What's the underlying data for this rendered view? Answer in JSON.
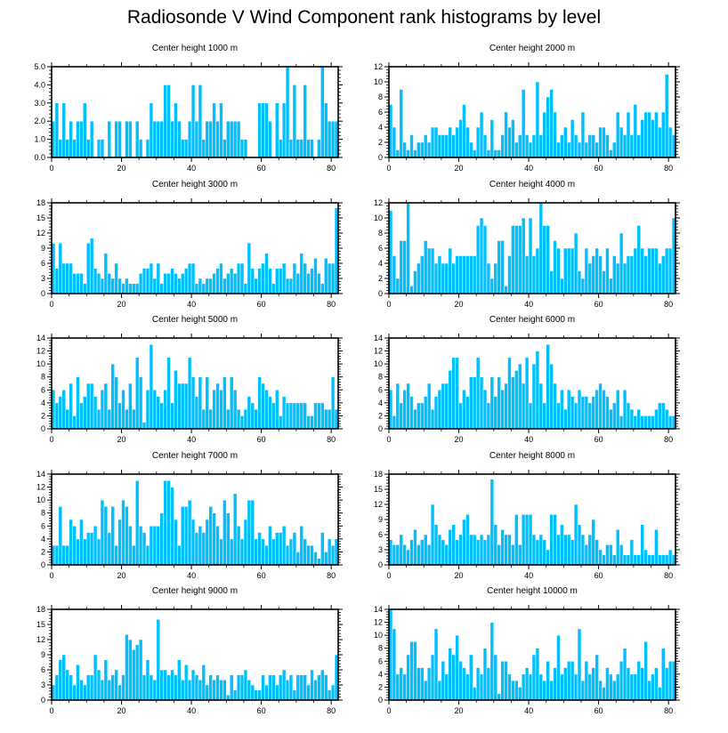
{
  "title": "Radiosonde V Wind Component rank histograms by level",
  "colors": {
    "bar": "#00BFFF",
    "bar_edge": "#ffffff",
    "axis": "#000000"
  },
  "chart_data": [
    {
      "type": "bar",
      "title": "Center height 1000 m",
      "xlabel": "",
      "ylabel": "",
      "xlim": [
        0,
        82
      ],
      "ylim": [
        0,
        5
      ],
      "xticks": [
        0,
        20,
        40,
        60,
        80
      ],
      "xtick_labels": [
        "0",
        "20",
        "40",
        "60",
        "80"
      ],
      "yticks": [
        0,
        1,
        2,
        3,
        4,
        5
      ],
      "ytick_labels": [
        "0.0",
        "1.0",
        "2.0",
        "3.0",
        "4.0",
        "5.0"
      ],
      "values": [
        2,
        3,
        1,
        3,
        1,
        2,
        1,
        2,
        2,
        3,
        1,
        2,
        0,
        1,
        1,
        0,
        2,
        0,
        2,
        2,
        0,
        2,
        2,
        0,
        2,
        1,
        0,
        1,
        3,
        2,
        2,
        2,
        4,
        4,
        2,
        3,
        2,
        1,
        1,
        2,
        4,
        2,
        4,
        1,
        2,
        2,
        3,
        2,
        3,
        1,
        2,
        2,
        2,
        2,
        1,
        1,
        0,
        0,
        0,
        3,
        3,
        3,
        2,
        0,
        3,
        1,
        3,
        5,
        1,
        4,
        1,
        1,
        4,
        1,
        1,
        0,
        1,
        5,
        3,
        2,
        2,
        2
      ]
    },
    {
      "type": "bar",
      "title": "Center height 2000 m",
      "xlabel": "",
      "ylabel": "",
      "xlim": [
        0,
        82
      ],
      "ylim": [
        0,
        12
      ],
      "xticks": [
        0,
        20,
        40,
        60,
        80
      ],
      "xtick_labels": [
        "0",
        "20",
        "40",
        "60",
        "80"
      ],
      "yticks": [
        0,
        2,
        4,
        6,
        8,
        10,
        12
      ],
      "ytick_labels": [
        "0",
        "2",
        "4",
        "6",
        "8",
        "10",
        "12"
      ],
      "values": [
        7,
        4,
        1,
        9,
        2,
        1,
        3,
        1,
        2,
        2,
        3,
        2,
        4,
        4,
        3,
        3,
        3,
        4,
        3,
        4,
        5,
        7,
        4,
        2,
        1,
        4,
        6,
        3,
        1,
        5,
        1,
        1,
        3,
        6,
        4,
        5,
        2,
        3,
        9,
        3,
        2,
        3,
        10,
        3,
        6,
        8,
        9,
        6,
        2,
        3,
        4,
        2,
        5,
        3,
        2,
        6,
        2,
        3,
        3,
        2,
        4,
        4,
        3,
        1,
        2,
        6,
        4,
        3,
        6,
        3,
        7,
        3,
        5,
        6,
        6,
        5,
        6,
        4,
        6,
        11,
        4,
        3
      ]
    },
    {
      "type": "bar",
      "title": "Center height 3000 m",
      "xlabel": "",
      "ylabel": "",
      "xlim": [
        0,
        82
      ],
      "ylim": [
        0,
        18
      ],
      "xticks": [
        0,
        20,
        40,
        60,
        80
      ],
      "xtick_labels": [
        "0",
        "20",
        "40",
        "60",
        "80"
      ],
      "yticks": [
        0,
        3,
        6,
        9,
        12,
        15,
        18
      ],
      "ytick_labels": [
        "0",
        "3",
        "6",
        "9",
        "12",
        "15",
        "18"
      ],
      "values": [
        10,
        5,
        10,
        6,
        6,
        6,
        4,
        4,
        4,
        2,
        10,
        11,
        5,
        4,
        3,
        8,
        4,
        3,
        6,
        3,
        2,
        3,
        2,
        2,
        2,
        4,
        5,
        5,
        6,
        3,
        6,
        2,
        4,
        4,
        5,
        4,
        3,
        4,
        5,
        6,
        6,
        2,
        3,
        2,
        3,
        3,
        4,
        5,
        6,
        3,
        4,
        5,
        4,
        6,
        6,
        2,
        10,
        5,
        3,
        5,
        6,
        8,
        5,
        2,
        5,
        5,
        6,
        3,
        3,
        6,
        4,
        8,
        6,
        4,
        5,
        7,
        4,
        2,
        7,
        6,
        6,
        17
      ]
    },
    {
      "type": "bar",
      "title": "Center height 4000 m",
      "xlabel": "",
      "ylabel": "",
      "xlim": [
        0,
        82
      ],
      "ylim": [
        0,
        12
      ],
      "xticks": [
        0,
        20,
        40,
        60,
        80
      ],
      "xtick_labels": [
        "0",
        "20",
        "40",
        "60",
        "80"
      ],
      "yticks": [
        0,
        2,
        4,
        6,
        8,
        10,
        12
      ],
      "ytick_labels": [
        "0",
        "2",
        "4",
        "6",
        "8",
        "10",
        "12"
      ],
      "values": [
        11,
        5,
        2,
        7,
        7,
        12,
        1,
        3,
        4,
        5,
        7,
        6,
        6,
        4,
        5,
        4,
        4,
        6,
        4,
        5,
        5,
        5,
        5,
        5,
        5,
        9,
        10,
        9,
        4,
        2,
        4,
        7,
        7,
        1,
        5,
        9,
        9,
        9,
        10,
        5,
        10,
        5,
        6,
        12,
        9,
        9,
        3,
        7,
        6,
        2,
        6,
        6,
        6,
        8,
        3,
        2,
        6,
        4,
        5,
        6,
        5,
        3,
        6,
        2,
        5,
        4,
        8,
        4,
        5,
        5,
        6,
        9,
        6,
        5,
        6,
        6,
        6,
        4,
        5,
        6,
        6,
        10
      ]
    },
    {
      "type": "bar",
      "title": "Center height 5000 m",
      "xlabel": "",
      "ylabel": "",
      "xlim": [
        0,
        82
      ],
      "ylim": [
        0,
        14
      ],
      "xticks": [
        0,
        20,
        40,
        60,
        80
      ],
      "xtick_labels": [
        "0",
        "20",
        "40",
        "60",
        "80"
      ],
      "yticks": [
        0,
        2,
        4,
        6,
        8,
        10,
        12,
        14
      ],
      "ytick_labels": [
        "0",
        "2",
        "4",
        "6",
        "8",
        "10",
        "12",
        "14"
      ],
      "values": [
        6,
        4,
        5,
        6,
        3,
        7,
        2,
        8,
        4,
        5,
        7,
        7,
        5,
        3,
        6,
        7,
        3,
        10,
        8,
        4,
        6,
        3,
        7,
        3,
        11,
        8,
        1,
        6,
        13,
        6,
        5,
        4,
        6,
        11,
        4,
        9,
        7,
        7,
        7,
        11,
        8,
        5,
        8,
        3,
        8,
        3,
        6,
        7,
        6,
        8,
        3,
        8,
        6,
        3,
        2,
        3,
        5,
        4,
        3,
        8,
        7,
        6,
        5,
        4,
        6,
        2,
        5,
        4,
        4,
        4,
        4,
        4,
        4,
        2,
        2,
        4,
        4,
        4,
        3,
        3,
        8,
        3
      ]
    },
    {
      "type": "bar",
      "title": "Center height 6000 m",
      "xlabel": "",
      "ylabel": "",
      "xlim": [
        0,
        82
      ],
      "ylim": [
        0,
        14
      ],
      "xticks": [
        0,
        20,
        40,
        60,
        80
      ],
      "xtick_labels": [
        "0",
        "20",
        "40",
        "60",
        "80"
      ],
      "yticks": [
        0,
        2,
        4,
        6,
        8,
        10,
        12,
        14
      ],
      "ytick_labels": [
        "0",
        "2",
        "4",
        "6",
        "8",
        "10",
        "12",
        "14"
      ],
      "values": [
        6,
        2,
        7,
        4,
        6,
        7,
        5,
        3,
        4,
        4,
        5,
        7,
        3,
        5,
        6,
        7,
        7,
        9,
        11,
        11,
        4,
        6,
        5,
        8,
        8,
        11,
        8,
        6,
        4,
        8,
        5,
        8,
        6,
        7,
        11,
        8,
        9,
        10,
        7,
        11,
        4,
        10,
        12,
        7,
        4,
        13,
        10,
        7,
        4,
        6,
        3,
        6,
        5,
        4,
        6,
        5,
        5,
        4,
        5,
        6,
        7,
        6,
        5,
        3,
        4,
        6,
        2,
        6,
        4,
        3,
        2,
        3,
        2,
        2,
        2,
        2,
        3,
        4,
        4,
        3,
        2,
        2
      ]
    },
    {
      "type": "bar",
      "title": "Center height 7000 m",
      "xlabel": "",
      "ylabel": "",
      "xlim": [
        0,
        82
      ],
      "ylim": [
        0,
        14
      ],
      "xticks": [
        0,
        20,
        40,
        60,
        80
      ],
      "xtick_labels": [
        "0",
        "20",
        "40",
        "60",
        "80"
      ],
      "yticks": [
        0,
        2,
        4,
        6,
        8,
        10,
        12,
        14
      ],
      "ytick_labels": [
        "0",
        "2",
        "4",
        "6",
        "8",
        "10",
        "12",
        "14"
      ],
      "values": [
        3,
        3,
        9,
        3,
        3,
        7,
        6,
        4,
        7,
        4,
        5,
        5,
        6,
        4,
        10,
        9,
        5,
        9,
        3,
        7,
        10,
        9,
        6,
        3,
        13,
        6,
        5,
        3,
        6,
        6,
        6,
        8,
        13,
        13,
        12,
        7,
        3,
        9,
        9,
        10,
        7,
        5,
        6,
        5,
        7,
        9,
        8,
        6,
        4,
        10,
        8,
        4,
        11,
        6,
        4,
        7,
        10,
        10,
        4,
        5,
        4,
        3,
        6,
        4,
        5,
        5,
        6,
        3,
        4,
        5,
        2,
        6,
        4,
        3,
        3,
        2,
        1,
        5,
        2,
        4,
        3,
        4
      ]
    },
    {
      "type": "bar",
      "title": "Center height 8000 m",
      "xlabel": "",
      "ylabel": "",
      "xlim": [
        0,
        82
      ],
      "ylim": [
        0,
        18
      ],
      "xticks": [
        0,
        20,
        40,
        60,
        80
      ],
      "xtick_labels": [
        "0",
        "20",
        "40",
        "60",
        "80"
      ],
      "yticks": [
        0,
        3,
        6,
        9,
        12,
        15,
        18
      ],
      "ytick_labels": [
        "0",
        "3",
        "6",
        "9",
        "12",
        "15",
        "18"
      ],
      "values": [
        5,
        4,
        4,
        6,
        4,
        3,
        5,
        7,
        4,
        5,
        6,
        4,
        12,
        8,
        6,
        5,
        4,
        7,
        8,
        5,
        6,
        9,
        10,
        6,
        6,
        5,
        6,
        5,
        6,
        17,
        8,
        4,
        7,
        6,
        6,
        4,
        10,
        4,
        10,
        10,
        10,
        6,
        5,
        6,
        5,
        3,
        10,
        10,
        6,
        8,
        6,
        6,
        5,
        12,
        8,
        6,
        4,
        6,
        9,
        5,
        3,
        2,
        4,
        4,
        2,
        7,
        4,
        2,
        2,
        5,
        2,
        2,
        8,
        3,
        2,
        2,
        7,
        2,
        2,
        2,
        3,
        2
      ]
    },
    {
      "type": "bar",
      "title": "Center height 9000 m",
      "xlabel": "",
      "ylabel": "",
      "xlim": [
        0,
        82
      ],
      "ylim": [
        0,
        18
      ],
      "xticks": [
        0,
        20,
        40,
        60,
        80
      ],
      "xtick_labels": [
        "0",
        "20",
        "40",
        "60",
        "80"
      ],
      "yticks": [
        0,
        3,
        6,
        9,
        12,
        15,
        18
      ],
      "ytick_labels": [
        "0",
        "3",
        "6",
        "9",
        "12",
        "15",
        "18"
      ],
      "values": [
        3,
        5,
        8,
        9,
        6,
        5,
        3,
        7,
        4,
        3,
        5,
        5,
        9,
        6,
        4,
        8,
        4,
        5,
        6,
        3,
        5,
        13,
        12,
        10,
        11,
        12,
        5,
        8,
        5,
        4,
        16,
        6,
        6,
        5,
        6,
        5,
        8,
        4,
        7,
        4,
        6,
        5,
        4,
        7,
        3,
        5,
        4,
        5,
        4,
        4,
        1,
        5,
        2,
        5,
        5,
        6,
        4,
        3,
        2,
        2,
        5,
        3,
        5,
        5,
        3,
        5,
        6,
        4,
        5,
        2,
        5,
        5,
        5,
        3,
        6,
        4,
        5,
        6,
        5,
        2,
        3,
        9
      ]
    },
    {
      "type": "bar",
      "title": "Center height 10000 m",
      "xlabel": "",
      "ylabel": "",
      "xlim": [
        0,
        82
      ],
      "ylim": [
        0,
        14
      ],
      "xticks": [
        0,
        20,
        40,
        60,
        80
      ],
      "xtick_labels": [
        "0",
        "20",
        "40",
        "60",
        "80"
      ],
      "yticks": [
        0,
        2,
        4,
        6,
        8,
        10,
        12,
        14
      ],
      "ytick_labels": [
        "0",
        "2",
        "4",
        "6",
        "8",
        "10",
        "12",
        "14"
      ],
      "values": [
        14,
        11,
        4,
        5,
        4,
        7,
        9,
        9,
        5,
        5,
        3,
        5,
        7,
        11,
        3,
        6,
        4,
        8,
        7,
        10,
        6,
        5,
        4,
        7,
        2,
        5,
        4,
        8,
        5,
        12,
        7,
        1,
        6,
        6,
        4,
        3,
        3,
        2,
        4,
        5,
        4,
        7,
        8,
        4,
        3,
        6,
        3,
        5,
        10,
        4,
        5,
        6,
        6,
        4,
        11,
        3,
        6,
        4,
        5,
        7,
        3,
        2,
        5,
        4,
        3,
        4,
        6,
        8,
        5,
        4,
        4,
        6,
        5,
        9,
        3,
        4,
        5,
        2,
        8,
        5,
        6,
        6
      ]
    }
  ]
}
